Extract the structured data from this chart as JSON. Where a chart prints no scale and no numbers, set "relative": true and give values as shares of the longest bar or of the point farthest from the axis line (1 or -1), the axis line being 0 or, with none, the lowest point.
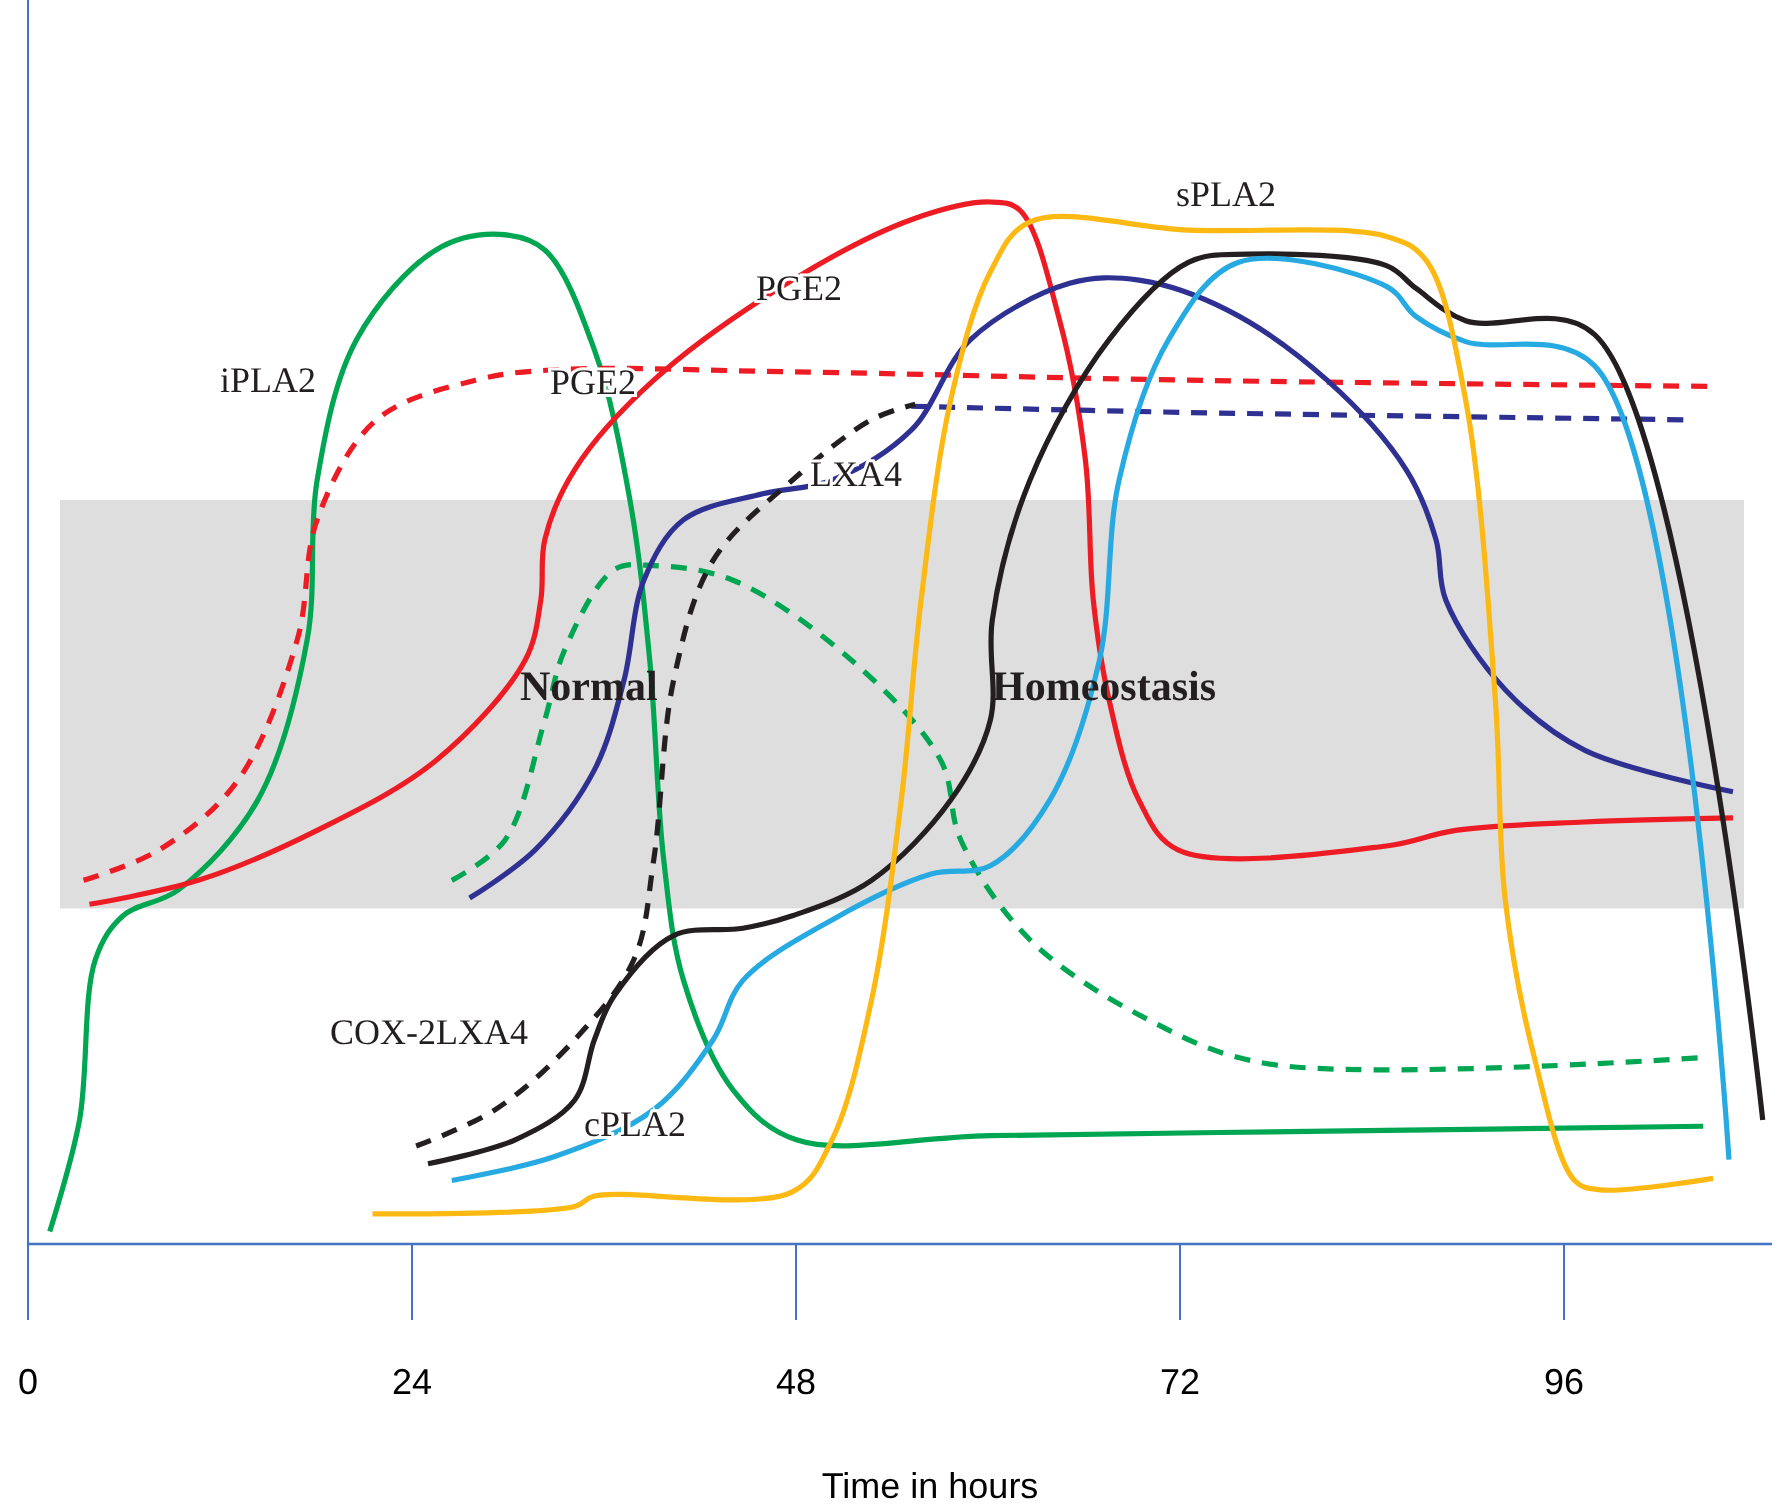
{
  "chart_data": {
    "type": "line",
    "relative": true,
    "xlabel": "Time in hours",
    "xlim": [
      0,
      109
    ],
    "xticks": [
      0,
      24,
      48,
      72,
      96
    ],
    "tick_labels": "x",
    "grid": false,
    "bands": [
      {
        "axis": "y",
        "from": 0.322,
        "to": 0.714,
        "label": null,
        "color": "#dedede"
      }
    ],
    "annotations": [
      "iPLA2",
      "PGE2",
      "PGE2",
      "LXA4",
      "sPLA2",
      "COX-2LXA4",
      "cPLA2",
      "Normal",
      "Homeostasis"
    ],
    "series": [
      {
        "color": "#00a651",
        "line_style": "solid",
        "x": [
          1.36,
          3.22,
          4.21,
          5.94,
          9.41,
          14.36,
          17.45,
          18.07,
          20.54,
          25.5,
          29.46,
          32.3,
          35.4,
          37.62,
          38.86,
          39.73,
          40.97,
          44.06,
          48.02,
          60.15,
          84.9,
          104.7
        ],
        "values": [
          0.012,
          0.119,
          0.273,
          0.315,
          0.34,
          0.426,
          0.58,
          0.733,
          0.868,
          0.954,
          0.969,
          0.954,
          0.858,
          0.714,
          0.56,
          0.369,
          0.253,
          0.148,
          0.1,
          0.104,
          0.109,
          0.113
        ]
      },
      {
        "color": "#ed1c24",
        "line_style": "solid",
        "x": [
          3.84,
          10.64,
          18.07,
          25.5,
          31.06,
          32.05,
          32.3,
          34.16,
          39.11,
          47.77,
          55.2,
          60.15,
          62.0,
          64.48,
          66.09,
          66.58,
          67.57,
          69.43,
          71.91,
          84.9,
          89.23,
          97.28,
          106.56
        ],
        "values": [
          0.326,
          0.349,
          0.397,
          0.464,
          0.56,
          0.618,
          0.676,
          0.743,
          0.829,
          0.925,
          0.983,
          1.0,
          0.992,
          0.886,
          0.752,
          0.618,
          0.522,
          0.426,
          0.378,
          0.382,
          0.397,
          0.405,
          0.409
        ]
      },
      {
        "color": "#ed1c24",
        "line_style": "dashed",
        "x": [
          3.47,
          8.17,
          13.12,
          16.83,
          18.07,
          21.78,
          27.97,
          32.92,
          47.77,
          72.52,
          105.32
        ],
        "values": [
          0.349,
          0.378,
          0.445,
          0.58,
          0.695,
          0.791,
          0.829,
          0.839,
          0.837,
          0.829,
          0.823
        ]
      },
      {
        "color": "#00a651",
        "line_style": "dashed",
        "x": [
          26.49,
          29.83,
          32.3,
          33.54,
          36.63,
          39.11,
          44.06,
          51.49,
          57.05,
          58.29,
          62.62,
          70.05,
          77.48,
          104.7
        ],
        "values": [
          0.349,
          0.388,
          0.503,
          0.57,
          0.647,
          0.651,
          0.637,
          0.56,
          0.464,
          0.388,
          0.292,
          0.215,
          0.173,
          0.179
        ]
      },
      {
        "color": "#2e3192",
        "line_style": "solid",
        "x": [
          27.6,
          31.68,
          35.4,
          37.25,
          38.49,
          40.97,
          45.92,
          50.25,
          55.2,
          58.91,
          65.1,
          69.43,
          75.0,
          81.19,
          86.14,
          88.0,
          88.61,
          92.33,
          97.28,
          106.56
        ],
        "values": [
          0.332,
          0.378,
          0.455,
          0.541,
          0.637,
          0.695,
          0.72,
          0.733,
          0.781,
          0.868,
          0.922,
          0.925,
          0.896,
          0.829,
          0.743,
          0.676,
          0.618,
          0.532,
          0.474,
          0.434
        ]
      },
      {
        "color": "#2e3192",
        "line_style": "dashed",
        "x": [
          55.2,
          72.52,
          103.47
        ],
        "values": [
          0.804,
          0.798,
          0.791
        ]
      },
      {
        "color": "#231f20",
        "line_style": "dashed",
        "x": [
          24.26,
          29.21,
          34.16,
          37.87,
          39.11,
          40.35,
          42.82,
          47.77,
          52.72,
          55.45
        ],
        "values": [
          0.094,
          0.129,
          0.196,
          0.273,
          0.369,
          0.541,
          0.656,
          0.733,
          0.791,
          0.806
        ]
      },
      {
        "color": "#231f20",
        "line_style": "solid",
        "x": [
          25.0,
          30.45,
          34.16,
          35.4,
          36.63,
          40.35,
          44.68,
          47.77,
          52.72,
          57.67,
          60.15,
          60.27,
          62.62,
          67.57,
          72.52,
          76.24,
          84.9,
          86.76,
          89.85,
          97.9,
          108.42
        ],
        "values": [
          0.077,
          0.1,
          0.138,
          0.196,
          0.238,
          0.296,
          0.303,
          0.315,
          0.349,
          0.426,
          0.503,
          0.599,
          0.733,
          0.868,
          0.942,
          0.95,
          0.939,
          0.917,
          0.886,
          0.873,
          0.119
        ]
      },
      {
        "color": "#27aae1",
        "line_style": "solid",
        "x": [
          26.49,
          32.92,
          39.11,
          42.82,
          44.68,
          50.25,
          56.44,
          60.15,
          63.86,
          66.96,
          68.19,
          71.29,
          75.62,
          84.9,
          86.76,
          89.85,
          97.9,
          106.31
        ],
        "values": [
          0.061,
          0.084,
          0.129,
          0.196,
          0.253,
          0.311,
          0.355,
          0.363,
          0.426,
          0.56,
          0.733,
          0.868,
          0.942,
          0.919,
          0.89,
          0.866,
          0.843,
          0.081
        ]
      },
      {
        "color": "#fdb913",
        "line_style": "solid",
        "x": [
          21.53,
          34.16,
          35.4,
          47.77,
          50.25,
          52.72,
          54.58,
          55.82,
          57.67,
          60.15,
          62.62,
          72.52,
          84.9,
          87.38,
          89.85,
          91.71,
          92.33,
          94.18,
          96.66,
          98.27,
          105.32
        ],
        "values": [
          0.029,
          0.036,
          0.046,
          0.05,
          0.1,
          0.234,
          0.426,
          0.618,
          0.81,
          0.933,
          0.981,
          0.973,
          0.967,
          0.944,
          0.81,
          0.522,
          0.33,
          0.177,
          0.061,
          0.052,
          0.063
        ]
      }
    ]
  }
}
